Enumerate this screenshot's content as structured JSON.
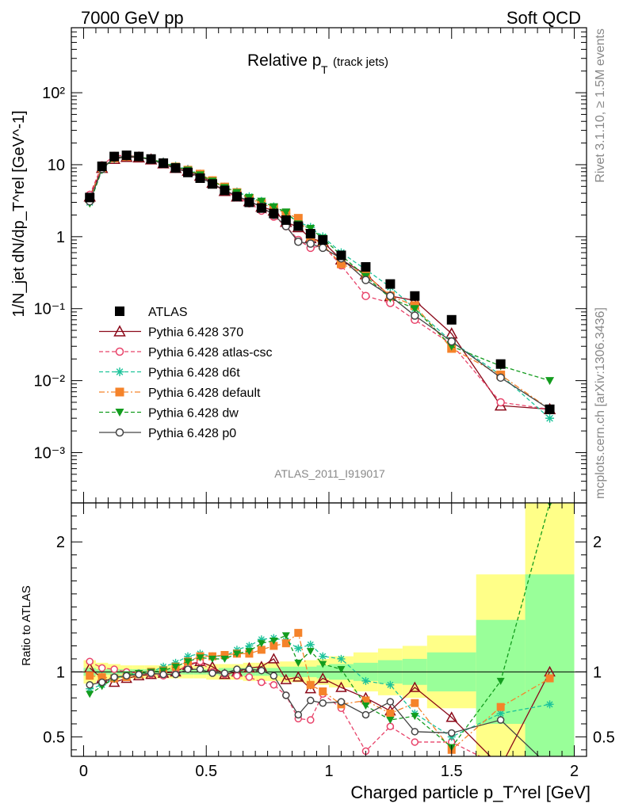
{
  "header": {
    "left": "7000 GeV pp",
    "right": "Soft QCD"
  },
  "side": {
    "rivet": "Rivet 3.1.10, ≥ 1.5M events",
    "mcplots": "mcplots.cern.ch [arXiv:1306.3436]"
  },
  "chart_data": {
    "type": "line",
    "title_main": "Relative p",
    "title_sub": "T",
    "title_tail": "(track jets)",
    "watermark": "ATLAS_2011_I919017",
    "ylabel_top": "1/N_jet dN/dp_T^rel [GeV^-1]",
    "ylabel_bottom": "Ratio to ATLAS",
    "xlabel": "Charged particle p_T^rel [GeV]",
    "x_scale": "linear",
    "xlim": [
      -0.05,
      2.05
    ],
    "top_y_scale": "log",
    "top_ylim": [
      0.0002,
      800
    ],
    "bottom_ylim": [
      0.35,
      2.3
    ],
    "x_ticks": [
      "0",
      "0.5",
      "1",
      "1.5",
      "2"
    ],
    "top_y_ticks": [
      "10⁻³",
      "10⁻²",
      "10⁻¹",
      "1",
      "10",
      "10²"
    ],
    "bottom_y_ticks": [
      "0.5",
      "1",
      "2"
    ],
    "legend_position": "bottom-left",
    "x": [
      0.025,
      0.075,
      0.125,
      0.175,
      0.225,
      0.275,
      0.325,
      0.375,
      0.425,
      0.475,
      0.525,
      0.575,
      0.625,
      0.675,
      0.725,
      0.775,
      0.825,
      0.875,
      0.925,
      0.975,
      1.05,
      1.15,
      1.25,
      1.35,
      1.5,
      1.7,
      1.9
    ],
    "band_edges": [
      0,
      0.05,
      0.1,
      0.15,
      0.2,
      0.25,
      0.3,
      0.35,
      0.4,
      0.45,
      0.5,
      0.55,
      0.6,
      0.65,
      0.7,
      0.75,
      0.8,
      0.85,
      0.9,
      0.95,
      1.0,
      1.1,
      1.2,
      1.3,
      1.4,
      1.6,
      1.8,
      2.0
    ],
    "band_stat": [
      0.03,
      0.02,
      0.02,
      0.02,
      0.02,
      0.02,
      0.02,
      0.02,
      0.02,
      0.02,
      0.02,
      0.03,
      0.03,
      0.03,
      0.03,
      0.03,
      0.04,
      0.04,
      0.04,
      0.05,
      0.06,
      0.07,
      0.09,
      0.1,
      0.15,
      0.4,
      0.75
    ],
    "band_total": [
      0.09,
      0.07,
      0.06,
      0.05,
      0.05,
      0.05,
      0.05,
      0.05,
      0.05,
      0.05,
      0.06,
      0.06,
      0.06,
      0.07,
      0.07,
      0.07,
      0.08,
      0.08,
      0.09,
      0.1,
      0.12,
      0.15,
      0.18,
      0.2,
      0.28,
      0.75,
      1.3
    ],
    "series": [
      {
        "name": "ATLAS",
        "color": "#000000",
        "marker": "square",
        "line": "none",
        "values": [
          3.5,
          9.5,
          13.0,
          13.5,
          13.0,
          12.0,
          10.5,
          9.0,
          7.8,
          6.5,
          5.4,
          4.4,
          3.6,
          3.0,
          2.5,
          2.1,
          1.7,
          1.4,
          1.1,
          0.9,
          0.55,
          0.38,
          0.22,
          0.15,
          0.07,
          0.017,
          0.004
        ],
        "ratio": [
          1.0,
          1.0,
          1.0,
          1.0,
          1.0,
          1.0,
          1.0,
          1.0,
          1.0,
          1.0,
          1.0,
          1.0,
          1.0,
          1.0,
          1.0,
          1.0,
          1.0,
          1.0,
          1.0,
          1.0,
          1.0,
          1.0,
          1.0,
          1.0,
          1.0,
          1.0,
          1.0
        ]
      },
      {
        "name": "Pythia 6.428 370",
        "color": "#8b0a1a",
        "marker": "triangle-up-open",
        "line": "solid",
        "values": [
          3.6,
          9.0,
          12.0,
          12.8,
          12.6,
          11.8,
          10.4,
          9.0,
          8.2,
          7.0,
          5.6,
          4.3,
          3.6,
          3.1,
          2.6,
          2.3,
          1.6,
          1.35,
          0.95,
          0.85,
          0.48,
          0.3,
          0.15,
          0.13,
          0.045,
          0.0045,
          0.004
        ],
        "ratio": [
          1.03,
          0.95,
          0.92,
          0.95,
          0.97,
          0.98,
          0.99,
          1.0,
          1.05,
          1.08,
          1.04,
          0.98,
          1.0,
          1.03,
          1.04,
          1.1,
          0.94,
          0.96,
          0.87,
          0.95,
          0.88,
          0.8,
          0.7,
          0.88,
          0.65,
          0.27,
          1.0
        ]
      },
      {
        "name": "Pythia 6.428 atlas-csc",
        "color": "#e8436a",
        "marker": "circle-open",
        "line": "dashed",
        "values": [
          3.8,
          9.8,
          13.3,
          13.5,
          12.9,
          11.8,
          10.2,
          8.9,
          8.3,
          7.0,
          5.4,
          4.3,
          3.5,
          2.9,
          2.3,
          1.9,
          1.4,
          0.9,
          0.7,
          0.75,
          0.4,
          0.15,
          0.12,
          0.07,
          0.032,
          0.005,
          0.004
        ],
        "ratio": [
          1.08,
          1.03,
          1.02,
          1.0,
          0.99,
          0.98,
          0.97,
          0.99,
          1.06,
          1.08,
          1.0,
          0.98,
          0.97,
          0.96,
          0.92,
          0.9,
          0.82,
          0.64,
          0.63,
          0.83,
          0.72,
          0.39,
          0.58,
          0.46,
          0.46,
          0.27,
          0.27
        ]
      },
      {
        "name": "Pythia 6.428 d6t",
        "color": "#1dc39a",
        "marker": "asterisk",
        "line": "dashed",
        "values": [
          3.0,
          8.6,
          12.2,
          13.0,
          12.8,
          12.0,
          10.8,
          9.6,
          8.6,
          7.4,
          6.0,
          4.9,
          4.2,
          3.6,
          3.1,
          2.6,
          2.1,
          1.6,
          1.35,
          1.0,
          0.6,
          0.35,
          0.2,
          0.1,
          0.035,
          0.012,
          0.003
        ],
        "ratio": [
          0.87,
          0.9,
          0.95,
          0.97,
          0.99,
          1.0,
          1.04,
          1.07,
          1.12,
          1.14,
          1.12,
          1.12,
          1.17,
          1.2,
          1.25,
          1.26,
          1.24,
          1.18,
          1.21,
          1.12,
          1.1,
          0.93,
          0.9,
          0.68,
          0.5,
          0.68,
          0.75
        ]
      },
      {
        "name": "Pythia 6.428 default",
        "color": "#f5832a",
        "marker": "square",
        "line": "dashdot",
        "values": [
          3.4,
          9.1,
          12.4,
          13.0,
          12.8,
          12.0,
          10.6,
          9.3,
          8.4,
          7.4,
          6.0,
          4.9,
          4.1,
          3.4,
          2.9,
          2.5,
          2.1,
          1.8,
          1.0,
          0.77,
          0.42,
          0.3,
          0.15,
          0.11,
          0.028,
          0.012,
          0.004
        ],
        "ratio": [
          0.97,
          0.96,
          0.95,
          0.96,
          0.98,
          1.0,
          1.01,
          1.04,
          1.08,
          1.12,
          1.12,
          1.13,
          1.14,
          1.14,
          1.17,
          1.2,
          1.22,
          1.3,
          0.9,
          0.85,
          0.75,
          0.78,
          0.68,
          0.76,
          0.4,
          0.73,
          0.95
        ]
      },
      {
        "name": "Pythia 6.428 dw",
        "color": "#139c1e",
        "marker": "triangle-down",
        "line": "dashed",
        "values": [
          2.9,
          8.5,
          12.3,
          13.2,
          12.9,
          12.0,
          10.6,
          9.4,
          8.4,
          7.2,
          5.9,
          4.8,
          4.1,
          3.5,
          3.1,
          2.6,
          2.2,
          1.5,
          1.3,
          0.95,
          0.55,
          0.28,
          0.14,
          0.1,
          0.03,
          0.016,
          0.01
        ],
        "ratio": [
          0.83,
          0.89,
          0.95,
          0.98,
          0.99,
          1.0,
          1.01,
          1.04,
          1.08,
          1.11,
          1.1,
          1.1,
          1.14,
          1.16,
          1.22,
          1.24,
          1.28,
          1.07,
          1.16,
          1.06,
          1.02,
          0.74,
          0.63,
          0.66,
          0.42,
          0.93,
          2.3
        ]
      },
      {
        "name": "Pythia 6.428 p0",
        "color": "#444444",
        "marker": "circle-open",
        "line": "solid",
        "values": [
          3.1,
          8.8,
          12.5,
          13.1,
          12.7,
          11.7,
          10.2,
          8.8,
          7.9,
          6.7,
          5.4,
          4.4,
          3.7,
          3.1,
          2.6,
          2.0,
          1.4,
          0.85,
          0.8,
          0.7,
          0.5,
          0.25,
          0.15,
          0.08,
          0.035,
          0.011,
          0.004
        ],
        "ratio": [
          0.9,
          0.92,
          0.96,
          0.97,
          0.98,
          0.99,
          0.98,
          0.98,
          1.02,
          1.02,
          0.99,
          0.99,
          1.02,
          1.02,
          1.01,
          0.97,
          0.82,
          0.67,
          0.78,
          0.76,
          0.77,
          0.67,
          0.77,
          0.54,
          0.53,
          0.63,
          0.27
        ]
      }
    ]
  }
}
